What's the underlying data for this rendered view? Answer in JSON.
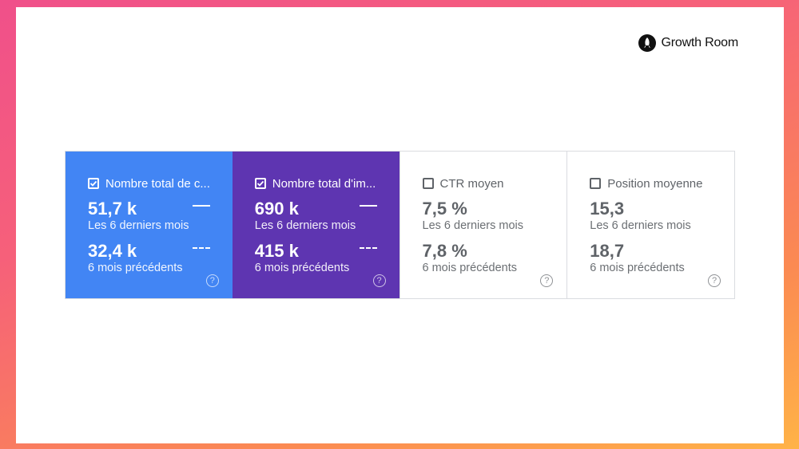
{
  "brand": {
    "name": "Growth Room",
    "icon": "rocket-icon"
  },
  "cards": [
    {
      "label": "Nombre total de c...",
      "checked": true,
      "current_value": "51,7 k",
      "current_period": "Les 6 derniers mois",
      "previous_value": "32,4 k",
      "previous_period": "6 mois précédents",
      "color": "#4285f4"
    },
    {
      "label": "Nombre total d'im...",
      "checked": true,
      "current_value": "690 k",
      "current_period": "Les 6 derniers mois",
      "previous_value": "415 k",
      "previous_period": "6 mois précédents",
      "color": "#5e35b1"
    },
    {
      "label": "CTR moyen",
      "checked": false,
      "current_value": "7,5 %",
      "current_period": "Les 6 derniers mois",
      "previous_value": "7,8 %",
      "previous_period": "6 mois précédents",
      "color": "#ffffff"
    },
    {
      "label": "Position moyenne",
      "checked": false,
      "current_value": "15,3",
      "current_period": "Les 6 derniers mois",
      "previous_value": "18,7",
      "previous_period": "6 mois précédents",
      "color": "#ffffff"
    }
  ],
  "help_icon": "?"
}
